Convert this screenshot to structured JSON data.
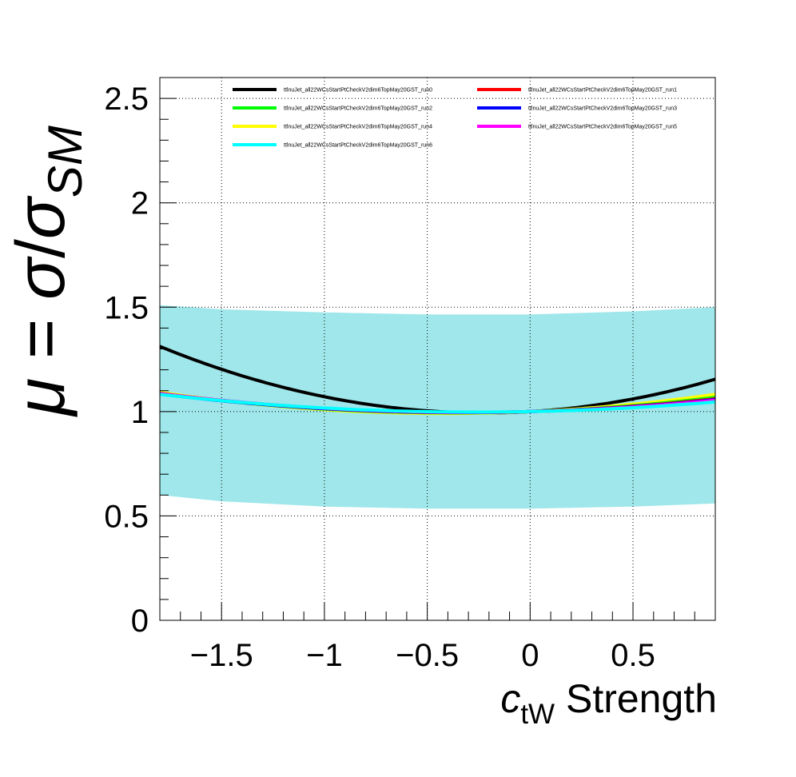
{
  "chart_data": {
    "type": "line",
    "title": "",
    "xlabel": {
      "var": "c",
      "sub": "tW",
      "rest": " Strength"
    },
    "ylabel": {
      "mu": "μ",
      "eq": " = ",
      "sigma": "σ",
      "slash": "/",
      "sigma2": "σ",
      "sub": "SM"
    },
    "xlim": [
      -1.8,
      0.9
    ],
    "ylim": [
      0,
      2.6
    ],
    "xticks": [
      -1.5,
      -1,
      -0.5,
      0,
      0.5
    ],
    "xtick_labels": [
      "−1.5",
      "−1",
      "−0.5",
      "0",
      "0.5"
    ],
    "yticks": [
      0,
      0.5,
      1,
      1.5,
      2,
      2.5
    ],
    "ytick_labels": [
      "0",
      "0.5",
      "1",
      "1.5",
      "2",
      "2.5"
    ],
    "grid": true,
    "legend_position": "top",
    "band": {
      "color": "#5fd7dc",
      "x": [
        -1.8,
        -1.5,
        -1.0,
        -0.5,
        0.0,
        0.5,
        0.9
      ],
      "upper": [
        1.51,
        1.49,
        1.475,
        1.465,
        1.465,
        1.48,
        1.5
      ],
      "lower": [
        0.6,
        0.57,
        0.545,
        0.535,
        0.535,
        0.545,
        0.56
      ]
    },
    "series": [
      {
        "name": "ttlnuJet_all22WCsStartPtCheckV2dim6TopMay20GST_run0",
        "color": "#000000",
        "a": 0.128,
        "b": 0.057
      },
      {
        "name": "ttlnuJet_all22WCsStartPtCheckV2dim6TopMay20GST_run1",
        "color": "#ff0000",
        "a": 0.043,
        "b": 0.029
      },
      {
        "name": "ttlnuJet_all22WCsStartPtCheckV2dim6TopMay20GST_run2",
        "color": "#00ff00",
        "a": 0.046,
        "b": 0.034
      },
      {
        "name": "ttlnuJet_all22WCsStartPtCheckV2dim6TopMay20GST_run3",
        "color": "#0000ff",
        "a": 0.041,
        "b": 0.027
      },
      {
        "name": "ttlnuJet_all22WCsStartPtCheckV2dim6TopMay20GST_run4",
        "color": "#ffff00",
        "a": 0.053,
        "b": 0.044
      },
      {
        "name": "ttlnuJet_all22WCsStartPtCheckV2dim6TopMay20GST_run5",
        "color": "#ff00ff",
        "a": 0.04,
        "b": 0.024
      },
      {
        "name": "ttlnuJet_all22WCsStartPtCheckV2dim6TopMay20GST_run6",
        "color": "#00ffff",
        "a": 0.036,
        "b": 0.019
      }
    ]
  }
}
